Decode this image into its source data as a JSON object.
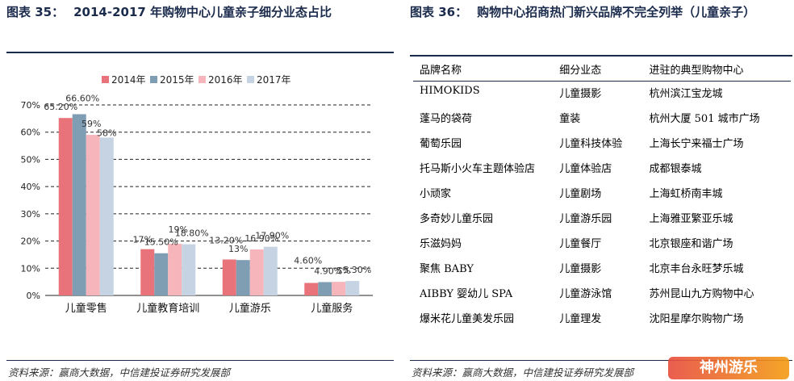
{
  "left": {
    "title_label": "图表 35：",
    "title_text": "2014-2017 年购物中心儿童亲子细分业态占比",
    "source": "资料来源：赢商大数据，中信建投证券研究发展部"
  },
  "right": {
    "title_label": "图表 36：",
    "title_text": "购物中心招商热门新兴品牌不完全列举（儿童亲子）",
    "source": "资料来源：赢商大数据，中信建投证券研究发展部",
    "table": {
      "headers": [
        "品牌名称",
        "细分业态",
        "进驻的典型购物中心"
      ],
      "rows": [
        [
          "HIMOKIDS",
          "儿童摄影",
          "杭州滨江宝龙城"
        ],
        [
          "蓬马的袋荷",
          "童装",
          "杭州大厦 501 城市广场"
        ],
        [
          "葡萄乐园",
          "儿童科技体验",
          "上海长宁来福士广场"
        ],
        [
          "托马斯小火车主题体验店",
          "儿童体验店",
          "成都银泰城"
        ],
        [
          "小顽家",
          "儿童剧场",
          "上海虹桥南丰城"
        ],
        [
          "多奇妙儿童乐园",
          "儿童游乐园",
          "上海雅亚繁亚乐城"
        ],
        [
          "乐滋妈妈",
          "儿童餐厅",
          "北京银座和谐广场"
        ],
        [
          "聚焦 BABY",
          "儿童摄影",
          "北京丰台永旺梦乐城"
        ],
        [
          "AIBBY 婴幼儿 SPA",
          "儿童游泳馆",
          "苏州昆山九方购物中心"
        ],
        [
          "爆米花儿童美发乐园",
          "儿童理发",
          "沈阳星摩尔购物广场"
        ]
      ]
    }
  },
  "watermark": {
    "text": "神州游乐"
  },
  "chart_data": {
    "type": "bar",
    "categories": [
      "儿童零售",
      "儿童教育培训",
      "儿童游乐",
      "儿童服务"
    ],
    "series": [
      {
        "name": "2014年",
        "values": [
          65.2,
          17,
          13.2,
          4.6
        ],
        "labels": [
          "65.20%",
          "17%",
          "13.20%",
          "4.60%"
        ],
        "color": "#e8737a"
      },
      {
        "name": "2015年",
        "values": [
          66.6,
          15.5,
          13,
          4.9
        ],
        "labels": [
          "66.60%",
          "15.50%",
          "13%",
          "4.90%"
        ],
        "color": "#7f9db3"
      },
      {
        "name": "2016年",
        "values": [
          59,
          19,
          16.9,
          5
        ],
        "labels": [
          "59%",
          "19%",
          "16.90%",
          "5%"
        ],
        "color": "#f5b5bb"
      },
      {
        "name": "2017年",
        "values": [
          58,
          18.8,
          17.9,
          5.3
        ],
        "labels": [
          "58%",
          "18.80%",
          "17.90%",
          "5.30%"
        ],
        "color": "#c5d3e2"
      }
    ],
    "yticks": [
      "0%",
      "10%",
      "20%",
      "30%",
      "40%",
      "50%",
      "60%",
      "70%"
    ],
    "ylim": [
      0,
      70
    ],
    "grid": true,
    "legend": "top"
  }
}
